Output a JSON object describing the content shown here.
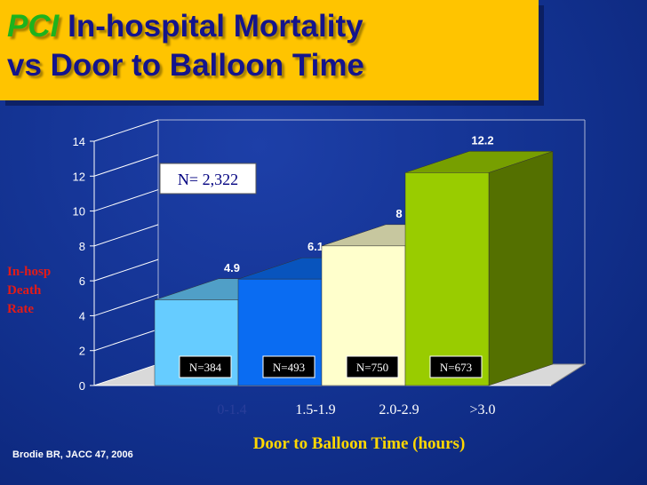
{
  "title": {
    "highlight": "PCI",
    "line1_rest": "In-hospital Mortality",
    "line2": "vs Door to Balloon Time"
  },
  "annotation": "N= 2,322",
  "source": "Brodie BR, JACC 47, 2006",
  "colors": {
    "background": "#12318f",
    "title_bg": "#ffc400",
    "title_text": "#14148c",
    "pci_text": "#1db31d",
    "ylabel": "#e41b17",
    "xlabel": "#ffd700"
  },
  "chart_data": {
    "type": "bar",
    "title": "",
    "xlabel": "Door to Balloon Time (hours)",
    "ylabel_lines": [
      "In-hosp",
      "Death",
      "Rate"
    ],
    "categories": [
      "0-1.4",
      "1.5-1.9",
      "2.0-2.9",
      ">3.0"
    ],
    "values": [
      4.9,
      6.1,
      8,
      12.2
    ],
    "value_labels": [
      "4.9",
      "6.1",
      "8",
      "12.2"
    ],
    "n_labels": [
      "N=384",
      "N=493",
      "N=750",
      "N=673"
    ],
    "bar_colors": [
      "#66ccff",
      "#0a6cf2",
      "#ffffcc",
      "#99cc00"
    ],
    "ylim": [
      0,
      14
    ],
    "yticks": [
      0,
      2,
      4,
      6,
      8,
      10,
      12,
      14
    ],
    "grid": false,
    "style": "3d-column"
  }
}
